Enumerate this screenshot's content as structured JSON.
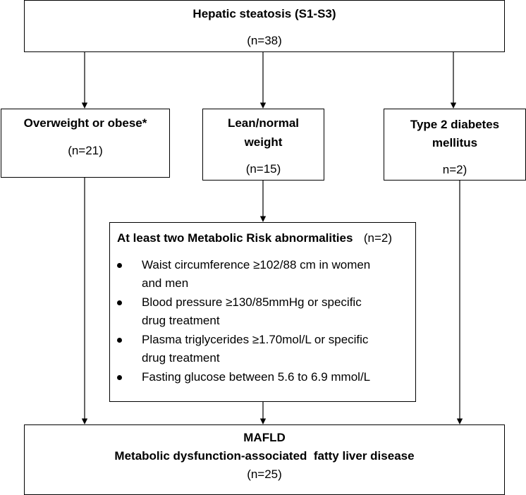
{
  "top_box": {
    "title": "Hepatic steatosis (S1-S3)",
    "count": "(n=38)"
  },
  "overweight_box": {
    "title": "Overweight or obese*",
    "count": "(n=21)"
  },
  "lean_box": {
    "title_line1": "Lean/normal",
    "title_line2": "weight",
    "count": "(n=15)"
  },
  "diabetes_box": {
    "title_line1": "Type 2 diabetes",
    "title_line2": "mellitus",
    "count": "n=2)"
  },
  "metabolic_box": {
    "title": "At least two Metabolic Risk abnormalities",
    "count": "(n=2)",
    "criteria": [
      {
        "line1": "Waist circumference  ≥102/88 cm in women",
        "line2": "and men"
      },
      {
        "line1": "Blood pressure  ≥130/85mmHg or specific",
        "line2": "drug treatment"
      },
      {
        "line1": "Plasma triglycerides ≥1.70mol/L or specific",
        "line2": "drug treatment"
      },
      {
        "line1": "Fasting glucose between  5.6 to 6.9 mmol/L",
        "line2": ""
      }
    ]
  },
  "mafld_box": {
    "title": "MAFLD",
    "subtitle": "Metabolic dysfunction-associated  fatty liver disease",
    "count": "(n=25)"
  }
}
